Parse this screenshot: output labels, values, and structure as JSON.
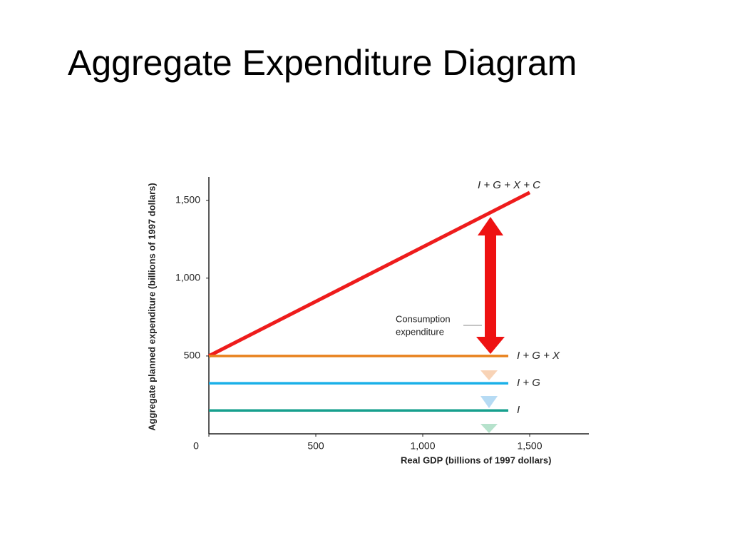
{
  "chart_data": {
    "type": "line",
    "title": "Aggregate Expenditure Diagram",
    "x_label": "Real GDP (billions of 1997 dollars)",
    "y_label": "Aggregate planned expenditure (billions of 1997 dollars)",
    "annotation": [
      "Consumption",
      "expenditure"
    ],
    "xlim": [
      0,
      1750
    ],
    "ylim": [
      0,
      1650
    ],
    "xticks": [
      0,
      500,
      {
        "value": 1000,
        "label": "1,000"
      },
      {
        "value": 1500,
        "label": "1,500"
      }
    ],
    "yticks": [
      500,
      {
        "value": 1000,
        "label": "1,000"
      },
      {
        "value": 1500,
        "label": "1,500"
      }
    ],
    "grid": false,
    "series": [
      {
        "name": "I + G + X + C",
        "color": "#ee1c1c",
        "x": [
          0,
          1500
        ],
        "values": [
          500,
          1550
        ]
      },
      {
        "name": "I + G + X",
        "color": "#e8821e",
        "x": [
          0,
          1400
        ],
        "values": [
          500,
          500
        ]
      },
      {
        "name": "I + G",
        "color": "#1ab0e8",
        "x": [
          0,
          1400
        ],
        "values": [
          325,
          325
        ]
      },
      {
        "name": "I",
        "color": "#17a08e",
        "x": [
          0,
          1400
        ],
        "values": [
          150,
          150
        ]
      }
    ]
  }
}
